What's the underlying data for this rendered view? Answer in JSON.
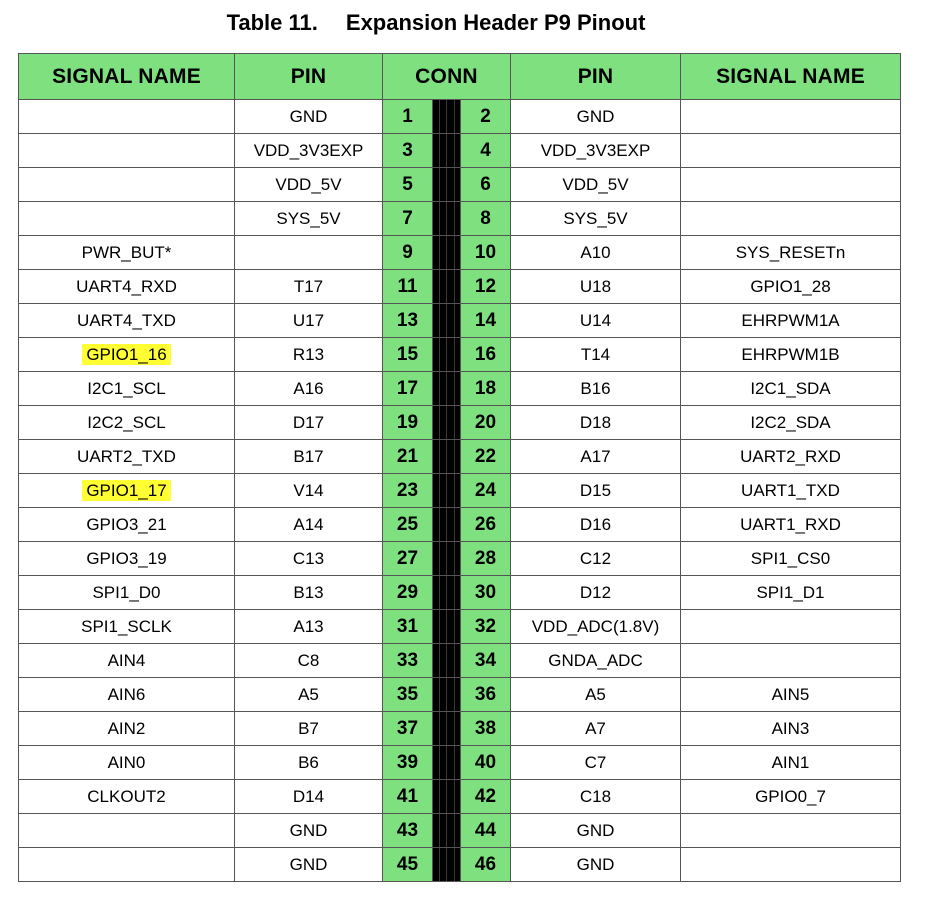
{
  "title": {
    "number": "Table 11.",
    "text": "Expansion Header P9 Pinout"
  },
  "headers": {
    "signal_left": "SIGNAL NAME",
    "pin_left": "PIN",
    "conn": "CONN",
    "pin_right": "PIN",
    "signal_right": "SIGNAL NAME"
  },
  "colors": {
    "header_green": "#7ee07e",
    "highlight_yellow": "#ffff33"
  },
  "rows": [
    {
      "sig_l": "",
      "pin_l": "GND",
      "n_l": "1",
      "n_r": "2",
      "pin_r": "GND",
      "sig_r": ""
    },
    {
      "sig_l": "",
      "pin_l": "VDD_3V3EXP",
      "n_l": "3",
      "n_r": "4",
      "pin_r": "VDD_3V3EXP",
      "sig_r": ""
    },
    {
      "sig_l": "",
      "pin_l": "VDD_5V",
      "n_l": "5",
      "n_r": "6",
      "pin_r": "VDD_5V",
      "sig_r": ""
    },
    {
      "sig_l": "",
      "pin_l": "SYS_5V",
      "n_l": "7",
      "n_r": "8",
      "pin_r": "SYS_5V",
      "sig_r": ""
    },
    {
      "sig_l": "PWR_BUT*",
      "pin_l": "",
      "n_l": "9",
      "n_r": "10",
      "pin_r": "A10",
      "sig_r": "SYS_RESETn"
    },
    {
      "sig_l": "UART4_RXD",
      "pin_l": "T17",
      "n_l": "11",
      "n_r": "12",
      "pin_r": "U18",
      "sig_r": "GPIO1_28"
    },
    {
      "sig_l": "UART4_TXD",
      "pin_l": "U17",
      "n_l": "13",
      "n_r": "14",
      "pin_r": "U14",
      "sig_r": "EHRPWM1A"
    },
    {
      "sig_l": "GPIO1_16",
      "pin_l": "R13",
      "n_l": "15",
      "n_r": "16",
      "pin_r": "T14",
      "sig_r": "EHRPWM1B",
      "highlight_l": true
    },
    {
      "sig_l": "I2C1_SCL",
      "pin_l": "A16",
      "n_l": "17",
      "n_r": "18",
      "pin_r": "B16",
      "sig_r": "I2C1_SDA"
    },
    {
      "sig_l": "I2C2_SCL",
      "pin_l": "D17",
      "n_l": "19",
      "n_r": "20",
      "pin_r": "D18",
      "sig_r": "I2C2_SDA"
    },
    {
      "sig_l": "UART2_TXD",
      "pin_l": "B17",
      "n_l": "21",
      "n_r": "22",
      "pin_r": "A17",
      "sig_r": "UART2_RXD"
    },
    {
      "sig_l": "GPIO1_17",
      "pin_l": "V14",
      "n_l": "23",
      "n_r": "24",
      "pin_r": "D15",
      "sig_r": "UART1_TXD",
      "highlight_l": true
    },
    {
      "sig_l": "GPIO3_21",
      "pin_l": "A14",
      "n_l": "25",
      "n_r": "26",
      "pin_r": "D16",
      "sig_r": "UART1_RXD"
    },
    {
      "sig_l": "GPIO3_19",
      "pin_l": "C13",
      "n_l": "27",
      "n_r": "28",
      "pin_r": "C12",
      "sig_r": "SPI1_CS0"
    },
    {
      "sig_l": "SPI1_D0",
      "pin_l": "B13",
      "n_l": "29",
      "n_r": "30",
      "pin_r": "D12",
      "sig_r": "SPI1_D1"
    },
    {
      "sig_l": "SPI1_SCLK",
      "pin_l": "A13",
      "n_l": "31",
      "n_r": "32",
      "pin_r": "VDD_ADC(1.8V)",
      "sig_r": ""
    },
    {
      "sig_l": "AIN4",
      "pin_l": "C8",
      "n_l": "33",
      "n_r": "34",
      "pin_r": "GNDA_ADC",
      "sig_r": ""
    },
    {
      "sig_l": "AIN6",
      "pin_l": "A5",
      "n_l": "35",
      "n_r": "36",
      "pin_r": "A5",
      "sig_r": "AIN5"
    },
    {
      "sig_l": "AIN2",
      "pin_l": "B7",
      "n_l": "37",
      "n_r": "38",
      "pin_r": "A7",
      "sig_r": "AIN3"
    },
    {
      "sig_l": "AIN0",
      "pin_l": "B6",
      "n_l": "39",
      "n_r": "40",
      "pin_r": "C7",
      "sig_r": "AIN1"
    },
    {
      "sig_l": "CLKOUT2",
      "pin_l": "D14",
      "n_l": "41",
      "n_r": "42",
      "pin_r": "C18",
      "sig_r": "GPIO0_7"
    },
    {
      "sig_l": "",
      "pin_l": "GND",
      "n_l": "43",
      "n_r": "44",
      "pin_r": "GND",
      "sig_r": ""
    },
    {
      "sig_l": "",
      "pin_l": "GND",
      "n_l": "45",
      "n_r": "46",
      "pin_r": "GND",
      "sig_r": ""
    }
  ]
}
